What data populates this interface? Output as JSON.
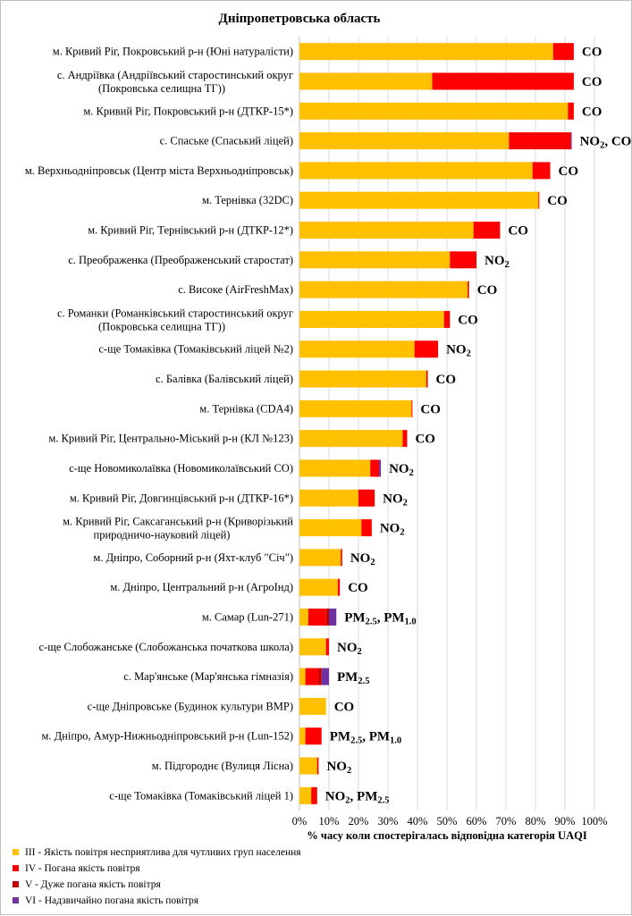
{
  "chart_data": {
    "type": "bar",
    "orientation": "horizontal",
    "stacked": true,
    "title": "Дніпропетровська  область",
    "xlabel": "% часу коли спостерігалась відповідна категорія UAQI",
    "xlim": [
      0,
      100
    ],
    "xticks": [
      "0%",
      "10%",
      "20%",
      "30%",
      "40%",
      "50%",
      "60%",
      "70%",
      "80%",
      "90%",
      "100%"
    ],
    "grid": true,
    "legend_position": "bottom-left",
    "categories": [
      [
        "м. Кривий Ріг, Покровський р-н (Юні натуралісти)"
      ],
      [
        "с. Андріївка (Андріївський старостинський округ",
        "(Покровська селищна ТГ))"
      ],
      [
        "м. Кривий Ріг, Покровський р-н (ДТКР-15*)"
      ],
      [
        "с. Спаське (Спаський ліцей)"
      ],
      [
        "м. Верхньодніпровськ (Центр міста Верхньодніпровськ)"
      ],
      [
        "м. Тернівка (32DC)"
      ],
      [
        "м. Кривий Ріг, Тернівський р-н (ДТКР-12*)"
      ],
      [
        "с. Преображенка (Преображенський старостат)"
      ],
      [
        "с. Високе (AirFreshMax)"
      ],
      [
        "с. Романки (Романківський старостинський округ",
        "(Покровська селищна ТГ))"
      ],
      [
        "с-ще Томаківка (Томаківський ліцей №2)"
      ],
      [
        "с. Балівка (Балівський ліцей)"
      ],
      [
        "м. Тернівка (CDA4)"
      ],
      [
        "м. Кривий Ріг, Центрально-Міський р-н (КЛ №123)"
      ],
      [
        "с-ще Новомиколаївка (Новомиколаївський СО)"
      ],
      [
        "м. Кривий Ріг, Довгинцівський р-н (ДТКР-16*)"
      ],
      [
        "м. Кривий Ріг, Саксаганський р-н (Криворізький",
        "природничо-науковий ліцей)"
      ],
      [
        "м. Дніпро, Соборний р-н (Яхт-клуб \"Січ\")"
      ],
      [
        "м. Дніпро, Центральний р-н (АгроІнд)"
      ],
      [
        "м. Самар (Lun-271)"
      ],
      [
        "с-ще Слобожанське (Слобожанська початкова школа)"
      ],
      [
        "с. Мар'янське (Мар'янська гімназія)"
      ],
      [
        "с-ще Дніпровське (Будинок культури ВМР)"
      ],
      [
        "м. Дніпро, Амур-Нижньодніпровський р-н (Lun-152)"
      ],
      [
        "м. Підгороднє (Вулиця Лісна)"
      ],
      [
        "с-ще Томаківка (Томаківський ліцей 1)"
      ]
    ],
    "series": [
      {
        "name": "III - Якість повітря  несприятлива  для чутливих  груп населення",
        "color": "#FFC000",
        "values": [
          86,
          45,
          91,
          71,
          79,
          81,
          59,
          51,
          57,
          49,
          39,
          43,
          38,
          35,
          24,
          20,
          21,
          14,
          13,
          3,
          9,
          2,
          9,
          2,
          6,
          4
        ]
      },
      {
        "name": "IV - Погана якість повітря",
        "color": "#FF0000",
        "values": [
          7,
          48,
          2,
          21,
          6,
          0.3,
          9,
          9,
          0.5,
          2,
          8,
          0.5,
          0.3,
          1.5,
          3,
          5.5,
          3.5,
          0.5,
          0.7,
          6,
          1,
          4.5,
          0,
          5.5,
          0.5,
          2
        ]
      },
      {
        "name": "V - Дуже погана  якість повітря",
        "color": "#C00000",
        "values": [
          0,
          0,
          0,
          0,
          0,
          0,
          0,
          0,
          0,
          0,
          0,
          0,
          0,
          0,
          0,
          0,
          0,
          0,
          0,
          1,
          0,
          1,
          0,
          0,
          0,
          0
        ]
      },
      {
        "name": "VI - Надзвичайно  погана  якість повітря",
        "color": "#7030A0",
        "values": [
          0,
          0,
          0,
          0.3,
          0,
          0,
          0,
          0,
          0,
          0,
          0,
          0,
          0,
          0,
          0.6,
          0,
          0,
          0,
          0,
          2.5,
          0,
          2.5,
          0,
          0,
          0,
          0
        ]
      }
    ],
    "annotations": [
      [
        {
          "t": "CO"
        }
      ],
      [
        {
          "t": "CO"
        }
      ],
      [
        {
          "t": "CO"
        }
      ],
      [
        {
          "t": "NO"
        },
        {
          "t": "2",
          "sub": true
        },
        {
          "t": ", CO"
        }
      ],
      [
        {
          "t": "CO"
        }
      ],
      [
        {
          "t": "CO"
        }
      ],
      [
        {
          "t": "CO"
        }
      ],
      [
        {
          "t": "NO"
        },
        {
          "t": "2",
          "sub": true
        }
      ],
      [
        {
          "t": "CO"
        }
      ],
      [
        {
          "t": "CO"
        }
      ],
      [
        {
          "t": "NO"
        },
        {
          "t": "2",
          "sub": true
        }
      ],
      [
        {
          "t": "CO"
        }
      ],
      [
        {
          "t": "CO"
        }
      ],
      [
        {
          "t": "CO"
        }
      ],
      [
        {
          "t": "NO"
        },
        {
          "t": "2",
          "sub": true
        }
      ],
      [
        {
          "t": "NO"
        },
        {
          "t": "2",
          "sub": true
        }
      ],
      [
        {
          "t": "NO"
        },
        {
          "t": "2",
          "sub": true
        }
      ],
      [
        {
          "t": "NO"
        },
        {
          "t": "2",
          "sub": true
        }
      ],
      [
        {
          "t": "CO"
        }
      ],
      [
        {
          "t": "PM"
        },
        {
          "t": "2.5",
          "sub": true
        },
        {
          "t": ", PM"
        },
        {
          "t": "1.0",
          "sub": true
        }
      ],
      [
        {
          "t": "NO"
        },
        {
          "t": "2",
          "sub": true
        }
      ],
      [
        {
          "t": "PM"
        },
        {
          "t": "2.5",
          "sub": true
        }
      ],
      [
        {
          "t": "CO"
        }
      ],
      [
        {
          "t": "PM"
        },
        {
          "t": "2.5",
          "sub": true
        },
        {
          "t": ", PM"
        },
        {
          "t": "1.0",
          "sub": true
        }
      ],
      [
        {
          "t": "NO"
        },
        {
          "t": "2",
          "sub": true
        }
      ],
      [
        {
          "t": "NO"
        },
        {
          "t": "2",
          "sub": true
        },
        {
          "t": ", PM"
        },
        {
          "t": "2.5",
          "sub": true
        }
      ]
    ]
  }
}
